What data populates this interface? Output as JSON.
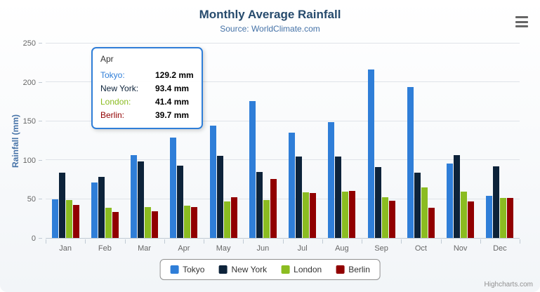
{
  "chart": {
    "title": "Monthly Average Rainfall",
    "subtitle": "Source: WorldClimate.com",
    "y_axis_title": "Rainfall (mm)",
    "credit": "Highcharts.com"
  },
  "chart_data": {
    "type": "bar",
    "title": "Monthly Average Rainfall",
    "subtitle": "Source: WorldClimate.com",
    "xlabel": "",
    "ylabel": "Rainfall (mm)",
    "categories": [
      "Jan",
      "Feb",
      "Mar",
      "Apr",
      "May",
      "Jun",
      "Jul",
      "Aug",
      "Sep",
      "Oct",
      "Nov",
      "Dec"
    ],
    "series": [
      {
        "name": "Tokyo",
        "color": "#2f7ed8",
        "values": [
          49.9,
          71.5,
          106.4,
          129.2,
          144.0,
          176.0,
          135.6,
          148.5,
          216.4,
          194.1,
          95.6,
          54.4
        ]
      },
      {
        "name": "New York",
        "color": "#0d233a",
        "values": [
          83.6,
          78.8,
          98.5,
          93.4,
          106.0,
          84.5,
          105.0,
          104.3,
          91.2,
          83.5,
          106.6,
          92.3
        ]
      },
      {
        "name": "London",
        "color": "#8bbc21",
        "values": [
          48.9,
          38.8,
          39.3,
          41.4,
          47.0,
          48.3,
          59.0,
          59.6,
          52.4,
          65.2,
          59.3,
          51.2
        ]
      },
      {
        "name": "Berlin",
        "color": "#910000",
        "values": [
          42.4,
          33.2,
          34.5,
          39.7,
          52.6,
          75.5,
          57.4,
          60.4,
          47.6,
          39.1,
          46.8,
          51.1
        ]
      }
    ],
    "ylim": [
      0,
      250
    ],
    "y_ticks": [
      0,
      50,
      100,
      150,
      200,
      250
    ],
    "grid": true,
    "legend_position": "bottom"
  },
  "tooltip": {
    "header": "Apr",
    "border_color": "#2f7ed8",
    "rows": [
      {
        "label": "Tokyo:",
        "value": "129.2 mm",
        "color": "#2f7ed8"
      },
      {
        "label": "New York:",
        "value": "93.4 mm",
        "color": "#0d233a"
      },
      {
        "label": "London:",
        "value": "41.4 mm",
        "color": "#8bbc21"
      },
      {
        "label": "Berlin:",
        "value": "39.7 mm",
        "color": "#910000"
      }
    ]
  },
  "icons": {
    "export_menu": "hamburger-icon"
  }
}
